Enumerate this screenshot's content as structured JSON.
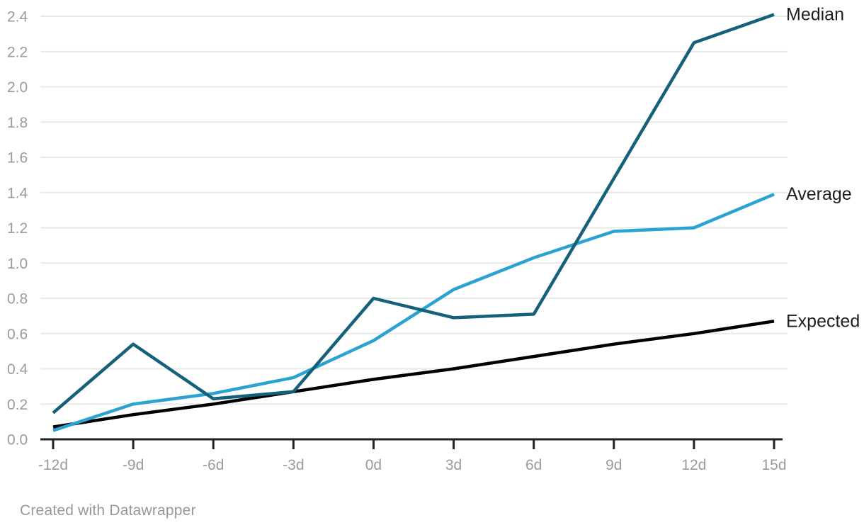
{
  "footer": {
    "credit": "Created with Datawrapper"
  },
  "colors": {
    "background": "#ffffff",
    "median": "#15607a",
    "average": "#2aa2d2",
    "expected": "#000000",
    "grid": "#e9e9e9",
    "axis": "#222222",
    "tick_label": "#9b9b9b",
    "series_label": "#1f1f1f",
    "footer_text": "#979797"
  },
  "chart_data": {
    "type": "line",
    "title": "",
    "xlabel": "",
    "ylabel": "",
    "x": [
      "-12d",
      "-9d",
      "-6d",
      "-3d",
      "0d",
      "3d",
      "6d",
      "9d",
      "12d",
      "15d"
    ],
    "series": [
      {
        "name": "Median",
        "color_key": "median",
        "values": [
          0.15,
          0.54,
          0.23,
          0.27,
          0.8,
          0.69,
          0.71,
          1.48,
          2.25,
          2.41
        ]
      },
      {
        "name": "Average",
        "color_key": "average",
        "values": [
          0.05,
          0.2,
          0.26,
          0.35,
          0.56,
          0.85,
          1.03,
          1.18,
          1.2,
          1.39
        ]
      },
      {
        "name": "Expected",
        "color_key": "expected",
        "values": [
          0.07,
          0.14,
          0.2,
          0.27,
          0.34,
          0.4,
          0.47,
          0.54,
          0.6,
          0.67
        ]
      }
    ],
    "ylim": [
      0,
      2.4
    ],
    "y_tick_step": 0.2,
    "y_tick_labels": [
      "0.0",
      "0.2",
      "0.4",
      "0.6",
      "0.8",
      "1.0",
      "1.2",
      "1.4",
      "1.6",
      "1.8",
      "2.0",
      "2.2",
      "2.4"
    ],
    "grid": true,
    "legend_position": "direct-labels-right"
  }
}
